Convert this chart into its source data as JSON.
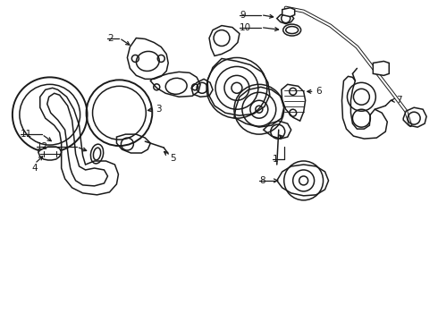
{
  "bg_color": "#ffffff",
  "line_color": "#1a1a1a",
  "lw": 1.1,
  "fig_width": 4.9,
  "fig_height": 3.6,
  "dpi": 100
}
